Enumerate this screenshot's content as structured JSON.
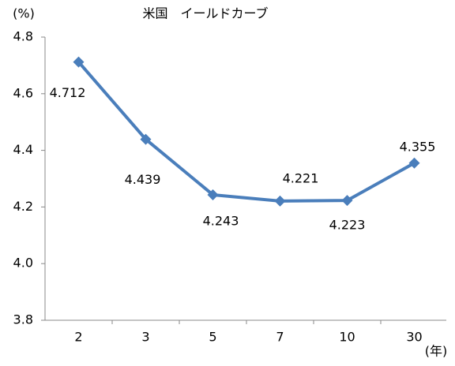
{
  "chart_data": {
    "type": "line",
    "title": "米国　イールドカーブ",
    "y_unit": "(%)",
    "x_unit": "(年)",
    "categories": [
      "2",
      "3",
      "5",
      "7",
      "10",
      "30"
    ],
    "series": [
      {
        "name": "米国",
        "color": "#4a7ebb",
        "values": [
          4.712,
          4.439,
          4.243,
          4.221,
          4.223,
          4.355
        ]
      }
    ],
    "ylim": [
      3.8,
      4.8
    ],
    "yticks": [
      3.8,
      {
        "value": 4,
        "label": "4.0"
      },
      4.2,
      4.4,
      4.6,
      4.8
    ],
    "grid": false
  }
}
